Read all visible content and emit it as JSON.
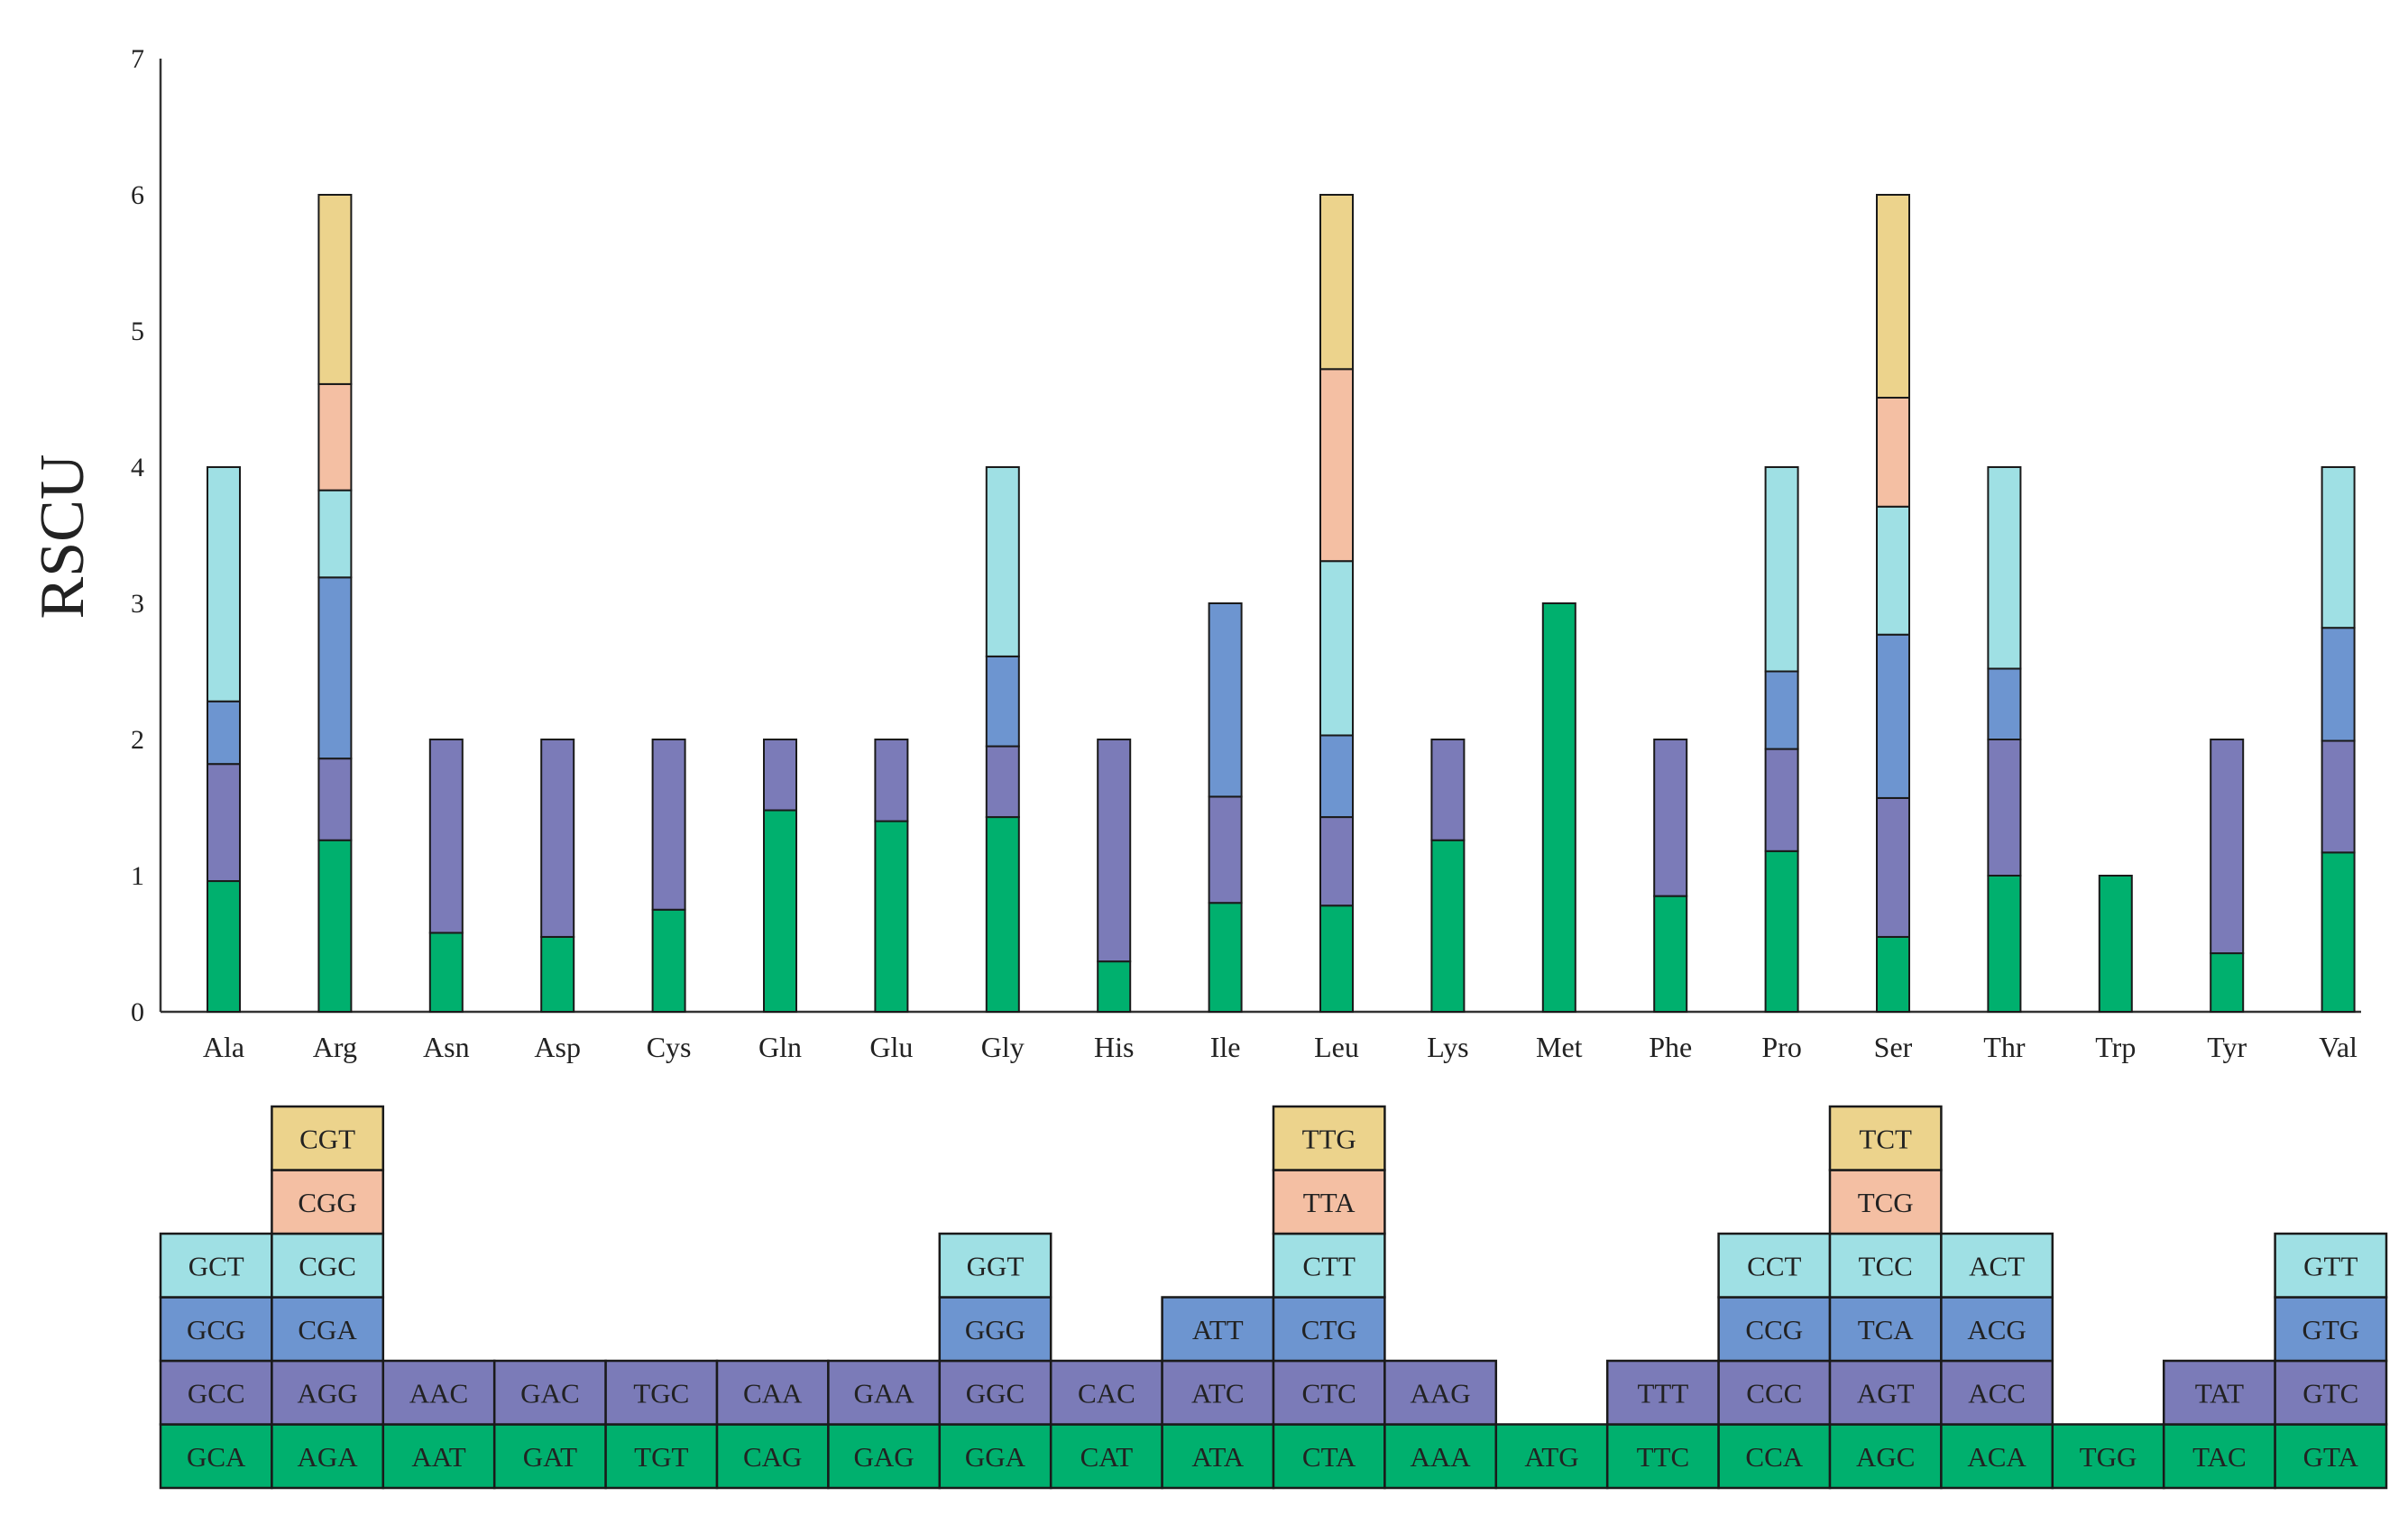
{
  "chart_data": {
    "type": "bar",
    "stacked": true,
    "title": "",
    "xlabel": "",
    "ylabel": "RSCU",
    "ylim": [
      0,
      7
    ],
    "yticks": [
      "0",
      "1",
      "2",
      "3",
      "4",
      "5",
      "6",
      "7"
    ],
    "grid": false,
    "legend": "codon table below the axis",
    "layer_colors": [
      "#00b06e",
      "#7b7bb8",
      "#6d95d0",
      "#9fe0e4",
      "#f4bfa3",
      "#ecd38c"
    ],
    "categories": [
      {
        "aa": "Ala",
        "codons": [
          "GCA",
          "GCC",
          "GCG",
          "GCT"
        ],
        "values": [
          0.96,
          0.86,
          0.46,
          1.72
        ]
      },
      {
        "aa": "Arg",
        "codons": [
          "AGA",
          "AGG",
          "CGA",
          "CGC",
          "CGG",
          "CGT"
        ],
        "values": [
          1.26,
          0.6,
          1.33,
          0.64,
          0.78,
          1.39
        ]
      },
      {
        "aa": "Asn",
        "codons": [
          "AAT",
          "AAC"
        ],
        "values": [
          0.58,
          1.42
        ]
      },
      {
        "aa": "Asp",
        "codons": [
          "GAT",
          "GAC"
        ],
        "values": [
          0.55,
          1.45
        ]
      },
      {
        "aa": "Cys",
        "codons": [
          "TGT",
          "TGC"
        ],
        "values": [
          0.75,
          1.25
        ]
      },
      {
        "aa": "Gln",
        "codons": [
          "CAG",
          "CAA"
        ],
        "values": [
          1.48,
          0.52
        ]
      },
      {
        "aa": "Glu",
        "codons": [
          "GAG",
          "GAA"
        ],
        "values": [
          1.4,
          0.6
        ]
      },
      {
        "aa": "Gly",
        "codons": [
          "GGA",
          "GGC",
          "GGG",
          "GGT"
        ],
        "values": [
          1.43,
          0.52,
          0.66,
          1.39
        ]
      },
      {
        "aa": "His",
        "codons": [
          "CAT",
          "CAC"
        ],
        "values": [
          0.37,
          1.63
        ]
      },
      {
        "aa": "Ile",
        "codons": [
          "ATA",
          "ATC",
          "ATT"
        ],
        "values": [
          0.8,
          0.78,
          1.42
        ]
      },
      {
        "aa": "Leu",
        "codons": [
          "CTA",
          "CTC",
          "CTG",
          "CTT",
          "TTA",
          "TTG"
        ],
        "values": [
          0.78,
          0.65,
          0.6,
          1.28,
          1.41,
          1.28
        ]
      },
      {
        "aa": "Lys",
        "codons": [
          "AAA",
          "AAG"
        ],
        "values": [
          1.26,
          0.74
        ]
      },
      {
        "aa": "Met",
        "codons": [
          "ATG"
        ],
        "values": [
          3.0
        ]
      },
      {
        "aa": "Phe",
        "codons": [
          "TTC",
          "TTT"
        ],
        "values": [
          0.85,
          1.15
        ]
      },
      {
        "aa": "Pro",
        "codons": [
          "CCA",
          "CCC",
          "CCG",
          "CCT"
        ],
        "values": [
          1.18,
          0.75,
          0.57,
          1.5
        ]
      },
      {
        "aa": "Ser",
        "codons": [
          "AGC",
          "AGT",
          "TCA",
          "TCC",
          "TCG",
          "TCT"
        ],
        "values": [
          0.55,
          1.02,
          1.2,
          0.94,
          0.8,
          1.49
        ]
      },
      {
        "aa": "Thr",
        "codons": [
          "ACA",
          "ACC",
          "ACG",
          "ACT"
        ],
        "values": [
          1.0,
          1.0,
          0.52,
          1.48
        ]
      },
      {
        "aa": "Trp",
        "codons": [
          "TGG"
        ],
        "values": [
          1.0
        ]
      },
      {
        "aa": "Tyr",
        "codons": [
          "TAC",
          "TAT"
        ],
        "values": [
          0.43,
          1.57
        ]
      },
      {
        "aa": "Val",
        "codons": [
          "GTA",
          "GTC",
          "GTG",
          "GTT"
        ],
        "values": [
          1.17,
          0.82,
          0.83,
          1.18
        ]
      }
    ]
  }
}
